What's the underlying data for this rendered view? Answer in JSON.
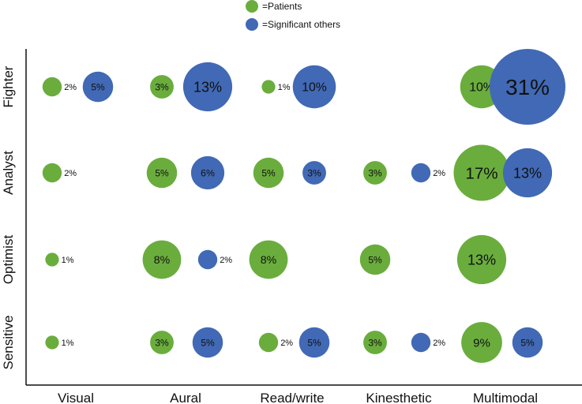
{
  "chart_data": {
    "type": "scatter",
    "subtype": "bubble",
    "title": "",
    "xlabel": "",
    "ylabel": "",
    "categories_x": [
      "Visual",
      "Aural",
      "Read/write",
      "Kinesthetic",
      "Multimodal"
    ],
    "categories_y": [
      "Fighter",
      "Analyst",
      "Optimist",
      "Sensitive"
    ],
    "series": [
      {
        "name": "=Patients",
        "color": "#6aad3d",
        "points": [
          {
            "x": "Visual",
            "y": "Fighter",
            "value": 2,
            "label": "2%"
          },
          {
            "x": "Aural",
            "y": "Fighter",
            "value": 3,
            "label": "3%"
          },
          {
            "x": "Read/write",
            "y": "Fighter",
            "value": 1,
            "label": "1%"
          },
          {
            "x": "Multimodal",
            "y": "Fighter",
            "value": 10,
            "label": "10%"
          },
          {
            "x": "Visual",
            "y": "Analyst",
            "value": 2,
            "label": "2%"
          },
          {
            "x": "Aural",
            "y": "Analyst",
            "value": 5,
            "label": "5%"
          },
          {
            "x": "Read/write",
            "y": "Analyst",
            "value": 5,
            "label": "5%"
          },
          {
            "x": "Kinesthetic",
            "y": "Analyst",
            "value": 3,
            "label": "3%"
          },
          {
            "x": "Multimodal",
            "y": "Analyst",
            "value": 17,
            "label": "17%"
          },
          {
            "x": "Visual",
            "y": "Optimist",
            "value": 1,
            "label": "1%"
          },
          {
            "x": "Aural",
            "y": "Optimist",
            "value": 8,
            "label": "8%"
          },
          {
            "x": "Read/write",
            "y": "Optimist",
            "value": 8,
            "label": "8%"
          },
          {
            "x": "Kinesthetic",
            "y": "Optimist",
            "value": 5,
            "label": "5%"
          },
          {
            "x": "Multimodal",
            "y": "Optimist",
            "value": 13,
            "label": "13%"
          },
          {
            "x": "Visual",
            "y": "Sensitive",
            "value": 1,
            "label": "1%"
          },
          {
            "x": "Aural",
            "y": "Sensitive",
            "value": 3,
            "label": "3%"
          },
          {
            "x": "Read/write",
            "y": "Sensitive",
            "value": 2,
            "label": "2%"
          },
          {
            "x": "Kinesthetic",
            "y": "Sensitive",
            "value": 3,
            "label": "3%"
          },
          {
            "x": "Multimodal",
            "y": "Sensitive",
            "value": 9,
            "label": "9%"
          }
        ]
      },
      {
        "name": "=Significant others",
        "color": "#4169b5",
        "points": [
          {
            "x": "Visual",
            "y": "Fighter",
            "value": 5,
            "label": "5%"
          },
          {
            "x": "Aural",
            "y": "Fighter",
            "value": 13,
            "label": "13%"
          },
          {
            "x": "Read/write",
            "y": "Fighter",
            "value": 10,
            "label": "10%"
          },
          {
            "x": "Multimodal",
            "y": "Fighter",
            "value": 31,
            "label": "31%"
          },
          {
            "x": "Aural",
            "y": "Analyst",
            "value": 6,
            "label": "6%"
          },
          {
            "x": "Read/write",
            "y": "Analyst",
            "value": 3,
            "label": "3%"
          },
          {
            "x": "Kinesthetic",
            "y": "Analyst",
            "value": 2,
            "label": "2%"
          },
          {
            "x": "Multimodal",
            "y": "Analyst",
            "value": 13,
            "label": "13%"
          },
          {
            "x": "Aural",
            "y": "Optimist",
            "value": 2,
            "label": "2%"
          },
          {
            "x": "Aural",
            "y": "Sensitive",
            "value": 5,
            "label": "5%"
          },
          {
            "x": "Read/write",
            "y": "Sensitive",
            "value": 5,
            "label": "5%"
          },
          {
            "x": "Kinesthetic",
            "y": "Sensitive",
            "value": 2,
            "label": "2%"
          },
          {
            "x": "Multimodal",
            "y": "Sensitive",
            "value": 5,
            "label": "5%"
          }
        ]
      }
    ],
    "legend_position": "top-center",
    "grid": false
  }
}
